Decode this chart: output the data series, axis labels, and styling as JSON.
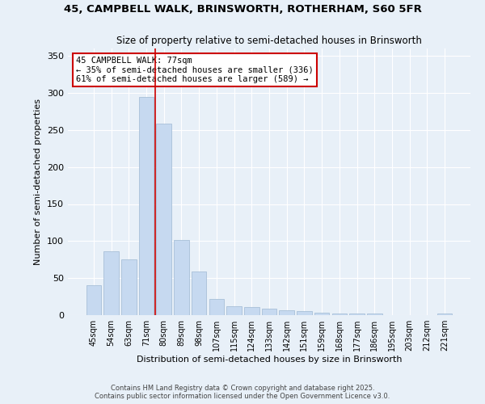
{
  "title1": "45, CAMPBELL WALK, BRINSWORTH, ROTHERHAM, S60 5FR",
  "title2": "Size of property relative to semi-detached houses in Brinsworth",
  "xlabel": "Distribution of semi-detached houses by size in Brinsworth",
  "ylabel": "Number of semi-detached properties",
  "categories": [
    "45sqm",
    "54sqm",
    "63sqm",
    "71sqm",
    "80sqm",
    "89sqm",
    "98sqm",
    "107sqm",
    "115sqm",
    "124sqm",
    "133sqm",
    "142sqm",
    "151sqm",
    "159sqm",
    "168sqm",
    "177sqm",
    "186sqm",
    "195sqm",
    "203sqm",
    "212sqm",
    "221sqm"
  ],
  "values": [
    40,
    86,
    75,
    295,
    258,
    102,
    59,
    22,
    12,
    11,
    9,
    7,
    5,
    3,
    2,
    2,
    2,
    0,
    0,
    0,
    2
  ],
  "bar_color": "#c6d9f0",
  "bar_edge_color": "#a8bfd8",
  "vline_color": "#cc0000",
  "vline_x_index": 3.5,
  "annotation_text": "45 CAMPBELL WALK: 77sqm\n← 35% of semi-detached houses are smaller (336)\n61% of semi-detached houses are larger (589) →",
  "annotation_box_color": "#ffffff",
  "annotation_box_edge": "#cc0000",
  "footer1": "Contains HM Land Registry data © Crown copyright and database right 2025.",
  "footer2": "Contains public sector information licensed under the Open Government Licence v3.0.",
  "bg_color": "#e8f0f8",
  "ylim": [
    0,
    360
  ],
  "yticks": [
    0,
    50,
    100,
    150,
    200,
    250,
    300,
    350
  ]
}
